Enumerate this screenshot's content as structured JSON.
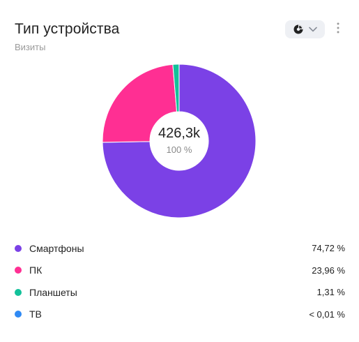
{
  "header": {
    "title": "Тип устройства",
    "subtitle": "Визиты"
  },
  "center": {
    "total": "426,3k",
    "percent": "100 %"
  },
  "chart_data": {
    "type": "pie",
    "categories": [
      "Смартфоны",
      "ПК",
      "Планшеты",
      "ТВ"
    ],
    "values": [
      74.72,
      23.96,
      1.31,
      0.01
    ],
    "colors": [
      "#7b41e6",
      "#ff2f93",
      "#12c19a",
      "#2f8af4"
    ]
  },
  "legend": [
    {
      "label": "Смартфоны",
      "value": "74,72 %",
      "color": "#7b41e6"
    },
    {
      "label": "ПК",
      "value": "23,96 %",
      "color": "#ff2f93"
    },
    {
      "label": "Планшеты",
      "value": "1,31 %",
      "color": "#12c19a"
    },
    {
      "label": "ТВ",
      "value": "< 0,01 %",
      "color": "#2f8af4"
    }
  ],
  "icons": {
    "chart_type": "pie-chart-icon",
    "dropdown": "chevron-down-icon",
    "more": "more-vertical-icon"
  }
}
